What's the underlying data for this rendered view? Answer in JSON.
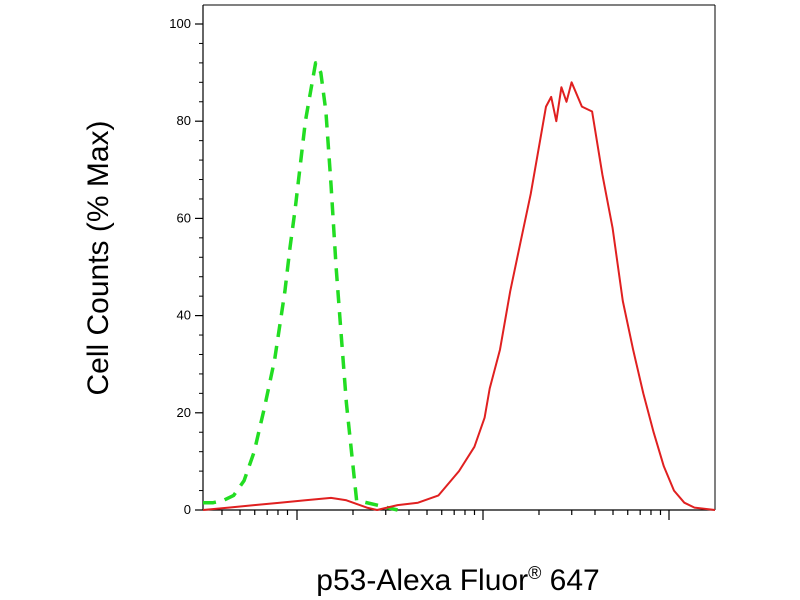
{
  "chart_data": {
    "type": "line",
    "title": "",
    "xlabel": "p53-Alexa Fluor",
    "xlabel_sup": "®",
    "xlabel_suffix": " 647",
    "ylabel": "Cell Counts (% Max)",
    "ylim": [
      0,
      105
    ],
    "yticks": [
      "0",
      "20",
      "40",
      "60",
      "80",
      "100"
    ],
    "x_scale": "log",
    "x_tick_labels": [],
    "grid": false,
    "legend": "none",
    "series": [
      {
        "style": "dashed",
        "color": "#22dd22",
        "x": [
          0.0,
          0.02,
          0.04,
          0.06,
          0.08,
          0.1,
          0.12,
          0.14,
          0.16,
          0.17,
          0.18,
          0.19,
          0.2,
          0.21,
          0.22,
          0.23,
          0.24,
          0.25,
          0.26,
          0.27,
          0.28,
          0.3,
          0.38
        ],
        "y": [
          1.5,
          1.5,
          2,
          3,
          6,
          12,
          21,
          31,
          45,
          54,
          62,
          71,
          80,
          86,
          92,
          90,
          82,
          67,
          50,
          36,
          22,
          2,
          0
        ]
      },
      {
        "style": "solid",
        "color": "#e02020",
        "x": [
          0.0,
          0.05,
          0.1,
          0.15,
          0.2,
          0.25,
          0.28,
          0.32,
          0.34,
          0.38,
          0.42,
          0.46,
          0.5,
          0.53,
          0.55,
          0.56,
          0.58,
          0.6,
          0.62,
          0.64,
          0.65,
          0.66,
          0.67,
          0.68,
          0.69,
          0.7,
          0.71,
          0.72,
          0.74,
          0.76,
          0.78,
          0.8,
          0.82,
          0.84,
          0.86,
          0.88,
          0.9,
          0.92,
          0.94,
          0.96,
          1.0
        ],
        "y": [
          0,
          0.5,
          1,
          1.5,
          2,
          2.5,
          2,
          0.5,
          0,
          1,
          1.5,
          3,
          8,
          13,
          19,
          25,
          33,
          45,
          55,
          65,
          71,
          77,
          83,
          85,
          80,
          87,
          84,
          88,
          83,
          82,
          69,
          58,
          43,
          33,
          24,
          16,
          9,
          4,
          1.5,
          0.5,
          0
        ]
      }
    ]
  }
}
